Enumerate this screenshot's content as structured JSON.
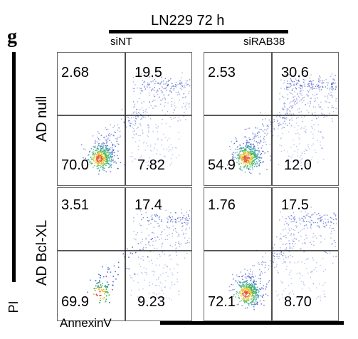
{
  "title": "LN229 72 h",
  "panel_letter": "g",
  "columns": [
    "siNT",
    "siRAB38"
  ],
  "rows": [
    "AD null",
    "AD Bcl-XL"
  ],
  "y_axis_label": "PI",
  "x_axis_label": "AnnexinV",
  "plots": [
    {
      "row": "AD null",
      "col": "siNT",
      "ul": "2.68",
      "ur": "19.5",
      "ll": "70.0",
      "lr": "7.82"
    },
    {
      "row": "AD null",
      "col": "siRAB38",
      "ul": "2.53",
      "ur": "30.6",
      "ll": "54.9",
      "lr": "12.0"
    },
    {
      "row": "AD Bcl-XL",
      "col": "siNT",
      "ul": "3.51",
      "ur": "17.4",
      "ll": "69.9",
      "lr": "9.23"
    },
    {
      "row": "AD Bcl-XL",
      "col": "siRAB38",
      "ul": "1.76",
      "ur": "17.5",
      "ll": "72.1",
      "lr": "8.70"
    }
  ]
}
